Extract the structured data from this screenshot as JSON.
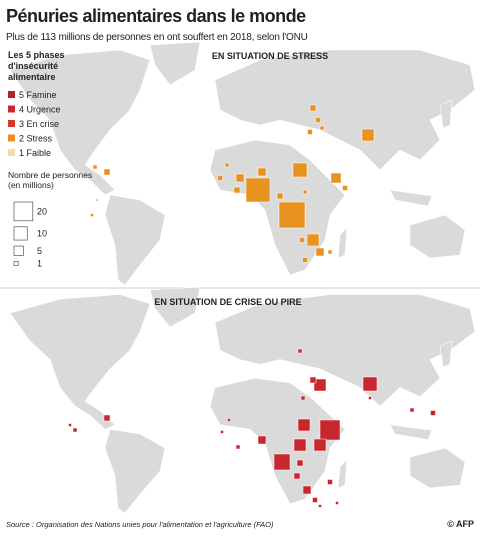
{
  "header": {
    "title": "Pénuries alimentaires dans le monde",
    "subtitle": "Plus de 113 millions de personnes en ont souffert en 2018, selon l'ONU"
  },
  "phase_legend": {
    "title": [
      "Les 5 phases",
      "d'insécurité",
      "alimentaire"
    ],
    "items": [
      {
        "label": "5 Famine",
        "color": "#b3202a"
      },
      {
        "label": "4 Urgence",
        "color": "#c8282d"
      },
      {
        "label": "3 En crise",
        "color": "#d33a2c"
      },
      {
        "label": "2 Stress",
        "color": "#e8921f"
      },
      {
        "label": "1 Faible",
        "color": "#f6dca4"
      }
    ]
  },
  "size_legend": {
    "title": [
      "Nombre de personnes",
      "(en millions)"
    ],
    "values": [
      20,
      10,
      5,
      1
    ]
  },
  "maps": [
    {
      "title": "EN SITUATION DE STRESS"
    },
    {
      "title": "EN SITUATION DE CRISE OU PIRE"
    }
  ],
  "footer": {
    "source": "Source : Organisation des Nations unies pour l'alimentation et l'agriculture (FAO)",
    "credit": "© AFP"
  }
}
